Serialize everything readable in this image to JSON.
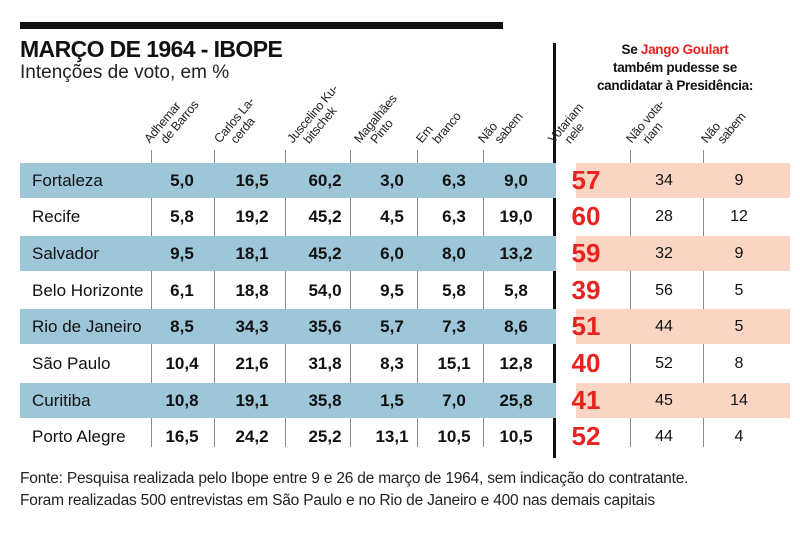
{
  "header": {
    "title": "MARÇO DE 1964 - IBOPE",
    "subtitle": "Intenções de voto, em %"
  },
  "side_note": {
    "prefix": "Se ",
    "highlight": "Jango Goulart",
    "line2": "também pudesse se",
    "line3": "candidatar à Presidência:"
  },
  "columns": [
    {
      "line1": "Adhemar",
      "line2": "de Barros"
    },
    {
      "line1": "Carlos La-",
      "line2": "cerda"
    },
    {
      "line1": "Juscelino Ku-",
      "line2": "bitschek"
    },
    {
      "line1": "Magalhães",
      "line2": "Pinto"
    },
    {
      "line1": "Em",
      "line2": "branco"
    },
    {
      "line1": "Não",
      "line2": "sabem"
    },
    {
      "line1": "Votariam",
      "line2": "nele"
    },
    {
      "line1": "Não vota-",
      "line2": "riam"
    },
    {
      "line1": "Não",
      "line2": "sabem"
    }
  ],
  "rows": [
    {
      "city": "Fortaleza",
      "values": [
        "5,0",
        "16,5",
        "60,2",
        "3,0",
        "6,3",
        "9,0"
      ],
      "jango": [
        "57",
        "34",
        "9"
      ]
    },
    {
      "city": "Recife",
      "values": [
        "5,8",
        "19,2",
        "45,2",
        "4,5",
        "6,3",
        "19,0"
      ],
      "jango": [
        "60",
        "28",
        "12"
      ]
    },
    {
      "city": "Salvador",
      "values": [
        "9,5",
        "18,1",
        "45,2",
        "6,0",
        "8,0",
        "13,2"
      ],
      "jango": [
        "59",
        "32",
        "9"
      ]
    },
    {
      "city": "Belo Horizonte",
      "values": [
        "6,1",
        "18,8",
        "54,0",
        "9,5",
        "5,8",
        "5,8"
      ],
      "jango": [
        "39",
        "56",
        "5"
      ]
    },
    {
      "city": "Rio de Janeiro",
      "values": [
        "8,5",
        "34,3",
        "35,6",
        "5,7",
        "7,3",
        "8,6"
      ],
      "jango": [
        "51",
        "44",
        "5"
      ]
    },
    {
      "city": "São Paulo",
      "values": [
        "10,4",
        "21,6",
        "31,8",
        "8,3",
        "15,1",
        "12,8"
      ],
      "jango": [
        "40",
        "52",
        "8"
      ]
    },
    {
      "city": "Curitiba",
      "values": [
        "10,8",
        "19,1",
        "35,8",
        "1,5",
        "7,0",
        "25,8"
      ],
      "jango": [
        "41",
        "45",
        "14"
      ]
    },
    {
      "city": "Porto Alegre",
      "values": [
        "16,5",
        "24,2",
        "25,2",
        "13,1",
        "10,5",
        "10,5"
      ],
      "jango": [
        "52",
        "44",
        "4"
      ]
    }
  ],
  "footer": {
    "line1": "Fonte: Pesquisa realizada pelo Ibope entre 9 e 26 de março de 1964, sem indicação do contratante.",
    "line2": "Foram realizadas 500 entrevistas em São Paulo e no Rio de Janeiro e 400 nas demais capitais"
  },
  "colors": {
    "row_shade_left": "#9dc6d8",
    "row_shade_right": "#fbd5c4",
    "accent_red": "#e8231f"
  }
}
